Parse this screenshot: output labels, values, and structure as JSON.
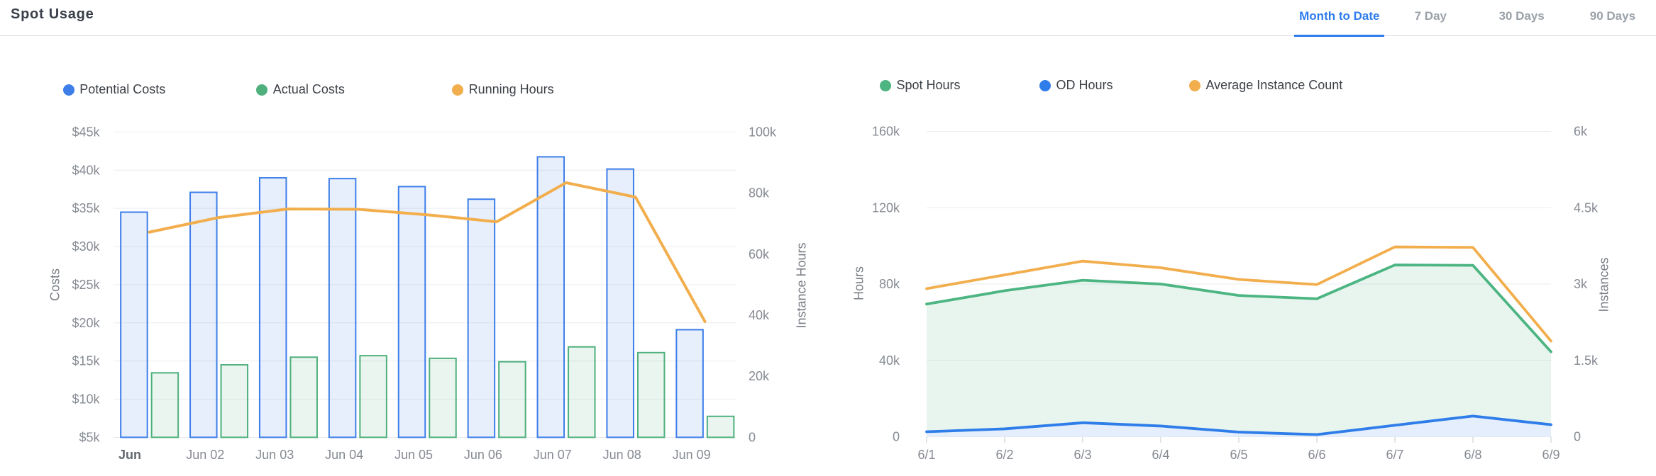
{
  "header": {
    "title": "Spot Usage",
    "tabs": [
      {
        "label": "Month to Date",
        "active": true
      },
      {
        "label": "7 Day",
        "active": false
      },
      {
        "label": "30 Days",
        "active": false
      },
      {
        "label": "90 Days",
        "active": false
      }
    ]
  },
  "palette": {
    "accent_blue": "#2e7ceb",
    "tab_inactive": "#9aa1a8",
    "divider": "#dadce0",
    "grid_line": "#ebedef",
    "axis_line": "#e3e5e8",
    "tick_mark": "#c6cbd2",
    "tick_text": "#868b92",
    "axis_name_text": "#797e85",
    "first_x_label": "#63686f",
    "legend_text": "#3c4147",
    "title_text": "#3a4049"
  },
  "chart_data": [
    {
      "type": "bar",
      "title": "",
      "categories": [
        "Jun",
        "Jun 02",
        "Jun 03",
        "Jun 04",
        "Jun 05",
        "Jun 06",
        "Jun 07",
        "Jun 08",
        "Jun 09"
      ],
      "series": [
        {
          "name": "Potential Costs",
          "type": "bar",
          "axis": "left",
          "color": "#3d7ee9",
          "values": [
            34500,
            37100,
            39000,
            38900,
            37850,
            36200,
            41750,
            40150,
            19100
          ]
        },
        {
          "name": "Actual Costs",
          "type": "bar",
          "axis": "left",
          "color": "#4fb07d",
          "values": [
            13450,
            14500,
            15500,
            15700,
            15350,
            14900,
            16850,
            16100,
            7750
          ]
        },
        {
          "name": "Running Hours",
          "type": "line",
          "axis": "right",
          "color": "#f2ae4d",
          "values": [
            67200,
            72000,
            74800,
            74700,
            72900,
            70600,
            83400,
            78700,
            37900
          ]
        }
      ],
      "left_axis": {
        "name": "Costs",
        "min": 5000,
        "max": 45000,
        "tick_labels": [
          "$5k",
          "$10k",
          "$15k",
          "$20k",
          "$25k",
          "$30k",
          "$35k",
          "$40k",
          "$45k"
        ]
      },
      "right_axis": {
        "name": "Instance Hours",
        "min": 0,
        "max": 100000,
        "tick_labels": [
          "0",
          "20k",
          "40k",
          "60k",
          "80k",
          "100k"
        ]
      },
      "legend_position": "top",
      "grid": true
    },
    {
      "type": "area",
      "title": "",
      "categories": [
        "6/1",
        "6/2",
        "6/3",
        "6/4",
        "6/5",
        "6/6",
        "6/7",
        "6/8",
        "6/9"
      ],
      "series": [
        {
          "name": "Spot Hours",
          "type": "area",
          "axis": "left",
          "color": "#4cb582",
          "values": [
            69500,
            76500,
            82000,
            80000,
            74000,
            72300,
            90000,
            89800,
            44500
          ]
        },
        {
          "name": "OD Hours",
          "type": "area",
          "axis": "left",
          "color": "#2e7de9",
          "values": [
            2600,
            4100,
            7300,
            5600,
            2400,
            1100,
            6000,
            10800,
            6300
          ]
        },
        {
          "name": "Average Instance Count",
          "type": "line",
          "axis": "right",
          "color": "#f2ae4d",
          "values": [
            2910,
            3180,
            3450,
            3320,
            3090,
            2990,
            3730,
            3720,
            1880
          ]
        }
      ],
      "left_axis": {
        "name": "Hours",
        "min": 0,
        "max": 160000,
        "tick_labels": [
          "0",
          "40k",
          "80k",
          "120k",
          "160k"
        ]
      },
      "right_axis": {
        "name": "Instances",
        "min": 0,
        "max": 6000,
        "tick_labels": [
          "0",
          "1.5k",
          "3k",
          "4.5k",
          "6k"
        ]
      },
      "legend_position": "top",
      "grid": true
    }
  ]
}
